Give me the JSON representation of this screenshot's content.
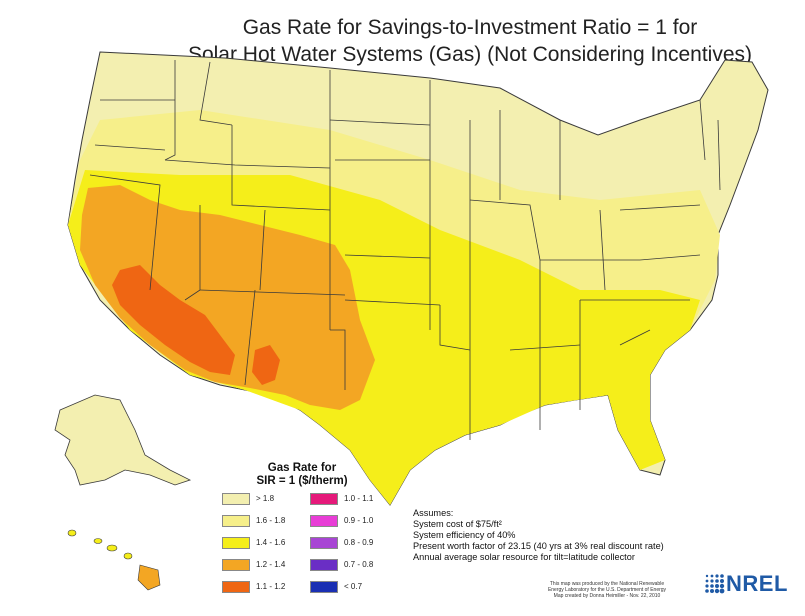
{
  "title": {
    "line1": "Gas Rate for Savings-to-Investment Ratio = 1 for",
    "line2": "Solar Hot Water Systems (Gas) (Not Considering Incentives)"
  },
  "legend": {
    "title_line1": "Gas Rate for",
    "title_line2": "SIR = 1  ($/therm)",
    "left": [
      {
        "label": "> 1.8",
        "color": "#f3efb0"
      },
      {
        "label": "1.6 - 1.8",
        "color": "#f6ef8a"
      },
      {
        "label": "1.4 - 1.6",
        "color": "#f5ee1a"
      },
      {
        "label": "1.2 - 1.4",
        "color": "#f3a623"
      },
      {
        "label": "1.1 - 1.2",
        "color": "#ef6613"
      }
    ],
    "right": [
      {
        "label": "1.0 - 1.1",
        "color": "#e5197a"
      },
      {
        "label": "0.9 - 1.0",
        "color": "#e83dd6"
      },
      {
        "label": "0.8 - 0.9",
        "color": "#a845d4"
      },
      {
        "label": "0.7 - 0.8",
        "color": "#6a2ec5"
      },
      {
        "label": "< 0.7",
        "color": "#1a2fb3"
      }
    ]
  },
  "assumptions": [
    "Assumes:",
    "System cost of $75/ft²",
    "System efficiency of 40%",
    "Present worth factor of 23.15 (40 yrs at 3% real discount rate)",
    "Annual average solar resource for tilt=latitude collector"
  ],
  "credit": [
    "This map was produced by the National Renewable",
    "Energy Laboratory for the U.S. Department of Energy",
    "Map created by Donna Heimiller - Nov. 22, 2010"
  ],
  "logo_text": "NREL",
  "colors": {
    "gt18": "#f3efb0",
    "c1618": "#f6ef8a",
    "c1416": "#f5ee1a",
    "c1214": "#f3a623",
    "c1112": "#ef6613",
    "border": "#3a3a3a"
  }
}
